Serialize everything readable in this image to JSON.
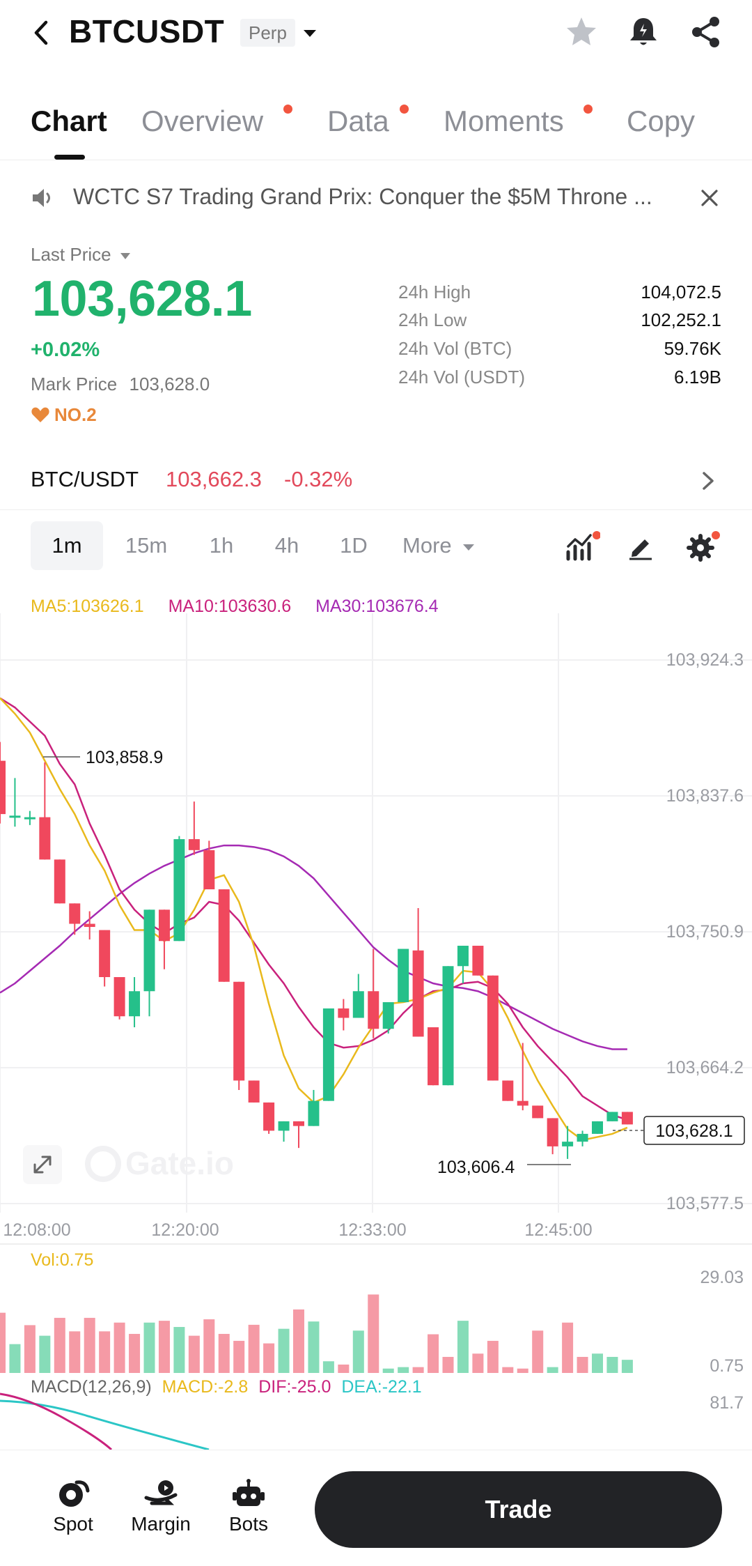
{
  "header": {
    "symbol": "BTCUSDT",
    "badge": "Perp"
  },
  "tabs": [
    {
      "label": "Chart",
      "active": true
    },
    {
      "label": "Overview",
      "dot": true
    },
    {
      "label": "Data",
      "dot": true
    },
    {
      "label": "Moments",
      "dot": true
    },
    {
      "label": "Copy"
    }
  ],
  "announcement": {
    "text": "WCTC S7 Trading Grand Prix: Conquer the $5M Throne ..."
  },
  "price": {
    "label": "Last Price",
    "last": "103,628.1",
    "change_pct": "+0.02%",
    "mark_label": "Mark Price",
    "mark_value": "103,628.0",
    "rank": "NO.2"
  },
  "stats": [
    {
      "label": "24h High",
      "value": "104,072.5"
    },
    {
      "label": "24h Low",
      "value": "102,252.1"
    },
    {
      "label": "24h Vol (BTC)",
      "value": "59.76K"
    },
    {
      "label": "24h Vol (USDT)",
      "value": "6.19B"
    }
  ],
  "pair": {
    "name": "BTC/USDT",
    "price": "103,662.3",
    "change": "-0.32%"
  },
  "timeframes": [
    "1m",
    "15m",
    "1h",
    "4h",
    "1D",
    "More"
  ],
  "indicators": {
    "ma5": "MA5:103626.1",
    "ma10": "MA10:103630.6",
    "ma30": "MA30:103676.4",
    "vol": "Vol:0.75",
    "macd_title": "MACD(12,26,9)",
    "macd": "MACD:-2.8",
    "dif": "DIF:-25.0",
    "dea": "DEA:-22.1"
  },
  "colors": {
    "up": "#25c08a",
    "down": "#f0485d",
    "up_text": "#20b26c",
    "down_text": "#e2485a",
    "ma5": "#e9b91c",
    "ma10": "#c9217c",
    "ma30": "#a52ab3",
    "dea": "#2bc6c6",
    "accent_dot": "#f2553f"
  },
  "chart_data": {
    "type": "candlestick",
    "y_axis_labels": [
      "103,924.3",
      "103,837.6",
      "103,750.9",
      "103,664.2",
      "103,577.5"
    ],
    "y_axis_values": [
      103924.3,
      103837.6,
      103750.9,
      103664.2,
      103577.5
    ],
    "x_axis_labels": [
      "12:08:00",
      "12:20:00",
      "12:33:00",
      "12:45:00"
    ],
    "high_marker": "103,858.9",
    "low_marker": "103,606.4",
    "last_marker": "103,628.1",
    "volume_axis": [
      "29.03",
      "0.75"
    ],
    "macd_axis": "81.7",
    "candles": [
      {
        "o": 103860,
        "c": 103826,
        "h": 103872,
        "l": 103820
      },
      {
        "o": 103825,
        "c": 103825,
        "h": 103849,
        "l": 103818
      },
      {
        "o": 103823,
        "c": 103824,
        "h": 103828,
        "l": 103819
      },
      {
        "o": 103824,
        "c": 103797,
        "h": 103859,
        "l": 103797
      },
      {
        "o": 103797,
        "c": 103769,
        "h": 103797,
        "l": 103769
      },
      {
        "o": 103769,
        "c": 103756,
        "h": 103769,
        "l": 103749
      },
      {
        "o": 103756,
        "c": 103754,
        "h": 103764,
        "l": 103746
      },
      {
        "o": 103752,
        "c": 103722,
        "h": 103752,
        "l": 103716
      },
      {
        "o": 103722,
        "c": 103697,
        "h": 103722,
        "l": 103695
      },
      {
        "o": 103697,
        "c": 103713,
        "h": 103722,
        "l": 103690
      },
      {
        "o": 103713,
        "c": 103765,
        "h": 103765,
        "l": 103697
      },
      {
        "o": 103765,
        "c": 103745,
        "h": 103765,
        "l": 103727
      },
      {
        "o": 103745,
        "c": 103810,
        "h": 103812,
        "l": 103745
      },
      {
        "o": 103810,
        "c": 103803,
        "h": 103834,
        "l": 103800
      },
      {
        "o": 103803,
        "c": 103778,
        "h": 103809,
        "l": 103778
      },
      {
        "o": 103778,
        "c": 103719,
        "h": 103778,
        "l": 103719
      },
      {
        "o": 103719,
        "c": 103656,
        "h": 103719,
        "l": 103650
      },
      {
        "o": 103656,
        "c": 103642,
        "h": 103656,
        "l": 103642
      },
      {
        "o": 103642,
        "c": 103624,
        "h": 103642,
        "l": 103622
      },
      {
        "o": 103624,
        "c": 103630,
        "h": 103630,
        "l": 103617
      },
      {
        "o": 103630,
        "c": 103627,
        "h": 103630,
        "l": 103613
      },
      {
        "o": 103627,
        "c": 103643,
        "h": 103650,
        "l": 103627
      },
      {
        "o": 103643,
        "c": 103702,
        "h": 103702,
        "l": 103643
      },
      {
        "o": 103702,
        "c": 103696,
        "h": 103708,
        "l": 103688
      },
      {
        "o": 103696,
        "c": 103713,
        "h": 103724,
        "l": 103696
      },
      {
        "o": 103713,
        "c": 103689,
        "h": 103740,
        "l": 103683
      },
      {
        "o": 103689,
        "c": 103706,
        "h": 103706,
        "l": 103686
      },
      {
        "o": 103706,
        "c": 103740,
        "h": 103740,
        "l": 103706
      },
      {
        "o": 103739,
        "c": 103684,
        "h": 103766,
        "l": 103684
      },
      {
        "o": 103690,
        "c": 103653,
        "h": 103690,
        "l": 103653
      },
      {
        "o": 103653,
        "c": 103729,
        "h": 103729,
        "l": 103653
      },
      {
        "o": 103729,
        "c": 103742,
        "h": 103742,
        "l": 103718
      },
      {
        "o": 103742,
        "c": 103723,
        "h": 103742,
        "l": 103723
      },
      {
        "o": 103723,
        "c": 103656,
        "h": 103723,
        "l": 103656
      },
      {
        "o": 103656,
        "c": 103643,
        "h": 103656,
        "l": 103643
      },
      {
        "o": 103643,
        "c": 103640,
        "h": 103680,
        "l": 103637
      },
      {
        "o": 103640,
        "c": 103632,
        "h": 103640,
        "l": 103632
      },
      {
        "o": 103632,
        "c": 103614,
        "h": 103632,
        "l": 103609
      },
      {
        "o": 103614,
        "c": 103617,
        "h": 103627,
        "l": 103606
      },
      {
        "o": 103617,
        "c": 103622,
        "h": 103624,
        "l": 103614
      },
      {
        "o": 103622,
        "c": 103630,
        "h": 103630,
        "l": 103622
      },
      {
        "o": 103630,
        "c": 103636,
        "h": 103636,
        "l": 103630
      },
      {
        "o": 103636,
        "c": 103628,
        "h": 103636,
        "l": 103628
      }
    ],
    "volumes": [
      {
        "v": 16.5,
        "up": false
      },
      {
        "v": 7.9,
        "up": true
      },
      {
        "v": 13.1,
        "up": false
      },
      {
        "v": 10.2,
        "up": true
      },
      {
        "v": 15.1,
        "up": false
      },
      {
        "v": 11.4,
        "up": false
      },
      {
        "v": 15.1,
        "up": false
      },
      {
        "v": 11.4,
        "up": false
      },
      {
        "v": 13.8,
        "up": false
      },
      {
        "v": 10.7,
        "up": false
      },
      {
        "v": 13.8,
        "up": true
      },
      {
        "v": 14.3,
        "up": false
      },
      {
        "v": 12.6,
        "up": true
      },
      {
        "v": 10.2,
        "up": false
      },
      {
        "v": 14.7,
        "up": false
      },
      {
        "v": 10.7,
        "up": false
      },
      {
        "v": 8.8,
        "up": false
      },
      {
        "v": 13.2,
        "up": false
      },
      {
        "v": 8.1,
        "up": false
      },
      {
        "v": 12.1,
        "up": true
      },
      {
        "v": 17.4,
        "up": false
      },
      {
        "v": 14.1,
        "up": true
      },
      {
        "v": 3.2,
        "up": true
      },
      {
        "v": 2.3,
        "up": false
      },
      {
        "v": 11.6,
        "up": true
      },
      {
        "v": 21.5,
        "up": false
      },
      {
        "v": 1.2,
        "up": true
      },
      {
        "v": 1.6,
        "up": true
      },
      {
        "v": 1.6,
        "up": false
      },
      {
        "v": 10.6,
        "up": false
      },
      {
        "v": 4.4,
        "up": false
      },
      {
        "v": 14.3,
        "up": true
      },
      {
        "v": 5.3,
        "up": false
      },
      {
        "v": 8.8,
        "up": false
      },
      {
        "v": 1.6,
        "up": false
      },
      {
        "v": 1.2,
        "up": false
      },
      {
        "v": 11.6,
        "up": false
      },
      {
        "v": 1.6,
        "up": true
      },
      {
        "v": 13.8,
        "up": false
      },
      {
        "v": 4.4,
        "up": false
      },
      {
        "v": 5.3,
        "up": true
      },
      {
        "v": 4.4,
        "up": true
      },
      {
        "v": 3.6,
        "up": true
      }
    ],
    "ma5": [
      103900,
      103890,
      103878,
      103860,
      103842,
      103826,
      103806,
      103790,
      103768,
      103752,
      103752,
      103745,
      103750,
      103765,
      103784,
      103787,
      103770,
      103742,
      103705,
      103672,
      103651,
      103642,
      103646,
      103660,
      103677,
      103691,
      103705,
      103706,
      103708,
      103712,
      103715,
      103726,
      103725,
      103714,
      103696,
      103675,
      103656,
      103640,
      103625,
      103618,
      103620,
      103622,
      103626
    ],
    "ma10": [
      103900,
      103894,
      103885,
      103876,
      103858,
      103845,
      103820,
      103800,
      103778,
      103765,
      103756,
      103750,
      103756,
      103760,
      103770,
      103768,
      103758,
      103744,
      103730,
      103718,
      103703,
      103690,
      103680,
      103677,
      103678,
      103682,
      103688,
      103699,
      103708,
      103713,
      103714,
      103718,
      103719,
      103715,
      103705,
      103690,
      103678,
      103668,
      103658,
      103646,
      103640,
      103634,
      103631
    ],
    "ma30": [
      103712,
      103718,
      103726,
      103734,
      103742,
      103751,
      103759,
      103767,
      103775,
      103782,
      103788,
      103793,
      103797,
      103801,
      103804,
      103806,
      103806,
      103805,
      103803,
      103799,
      103793,
      103785,
      103774,
      103763,
      103752,
      103741,
      103733,
      103726,
      103722,
      103718,
      103716,
      103715,
      103713,
      103709,
      103704,
      103699,
      103694,
      103689,
      103685,
      103681,
      103678,
      103676,
      103676
    ]
  }
}
